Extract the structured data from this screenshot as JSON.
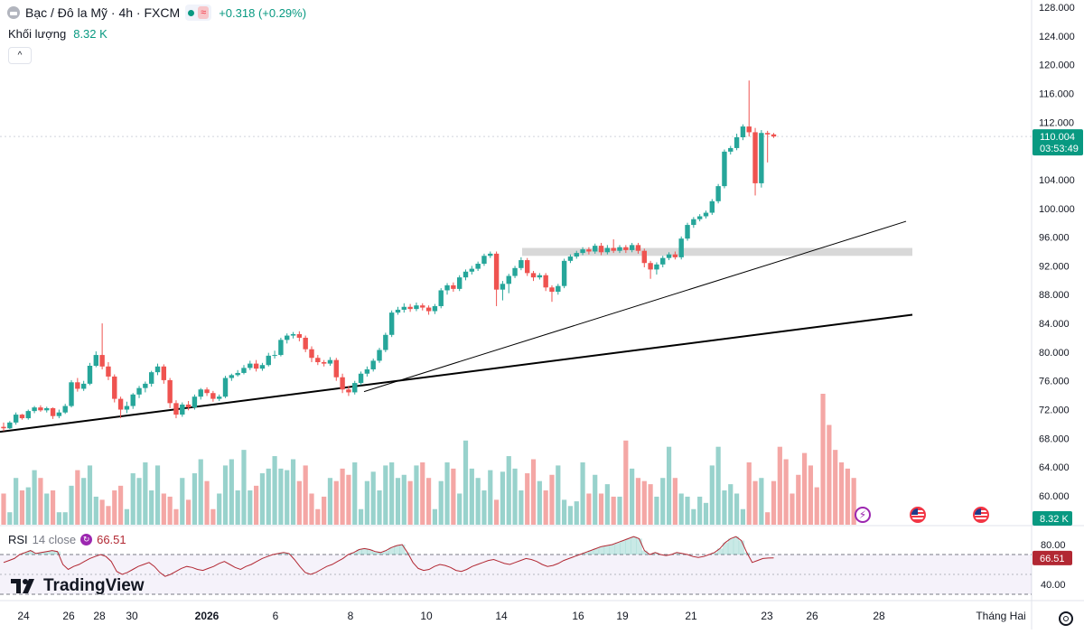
{
  "symbol": {
    "title": "Bạc / Đô la Mỹ · 4h · FXCM",
    "market_badge": "≈",
    "change": "+0.318 (+0.29%)",
    "icon": "silver-coin-icon"
  },
  "volume_legend": {
    "label": "Khối lượng",
    "value": "8.32 K"
  },
  "rsi_legend": {
    "name": "RSI",
    "source": "14 close",
    "value": "66.51"
  },
  "brand": {
    "name": "TradingView",
    "icon": "tradingview-logo-icon"
  },
  "price_axis": {
    "ticks": [
      "128.000",
      "124.000",
      "120.000",
      "116.000",
      "112.000",
      "104.000",
      "100.000",
      "96.000",
      "92.000",
      "88.000",
      "84.000",
      "80.000",
      "76.000",
      "72.000",
      "68.000",
      "64.000",
      "60.000"
    ],
    "last_price": "110.004",
    "countdown": "03:53:49",
    "volume_badge": "8.32 K"
  },
  "rsi_axis": {
    "ticks": [
      "80.00",
      "40.00"
    ],
    "value_badge": "66.51"
  },
  "time_axis": [
    "24",
    "26",
    "28",
    "30",
    "2026",
    "6",
    "8",
    "10",
    "14",
    "16",
    "19",
    "21",
    "23",
    "26",
    "28",
    "Tháng Hai"
  ],
  "colors": {
    "up": "#26a69a",
    "down": "#ef5350",
    "vol_up": "#98d2cc",
    "vol_down": "#f4a7a5",
    "rsi_line": "#b22833",
    "accent": "#089981"
  },
  "chart_data": {
    "type": "candlestick",
    "title": "Bạc / Đô la Mỹ · 4h · FXCM",
    "timeframe": "4h",
    "ylim": [
      58,
      129
    ],
    "yticks": [
      128,
      124,
      120,
      116,
      112,
      104,
      100,
      96,
      92,
      88,
      84,
      80,
      76,
      72,
      68,
      64,
      60
    ],
    "last_price": 110.004,
    "change": 0.318,
    "change_pct": 0.29,
    "candles": [
      [
        69.6,
        69.4,
        70.2,
        69.0
      ],
      [
        69.4,
        70.2,
        70.4,
        69.3
      ],
      [
        70.2,
        71.3,
        71.6,
        69.9
      ],
      [
        71.3,
        70.8,
        71.4,
        70.6
      ],
      [
        70.8,
        71.8,
        72.0,
        70.6
      ],
      [
        71.8,
        72.3,
        72.5,
        71.5
      ],
      [
        72.3,
        71.9,
        72.6,
        71.7
      ],
      [
        71.9,
        72.2,
        72.4,
        71.6
      ],
      [
        72.2,
        71.1,
        72.3,
        70.7
      ],
      [
        71.1,
        71.6,
        72.0,
        70.8
      ],
      [
        71.6,
        72.5,
        72.8,
        71.4
      ],
      [
        72.5,
        75.8,
        76.1,
        72.3
      ],
      [
        75.8,
        74.9,
        76.4,
        74.5
      ],
      [
        74.9,
        75.6,
        76.0,
        74.6
      ],
      [
        75.6,
        78.1,
        78.5,
        75.4
      ],
      [
        78.1,
        79.6,
        80.1,
        77.9
      ],
      [
        79.6,
        78.0,
        84.0,
        77.6
      ],
      [
        78.0,
        76.6,
        78.6,
        76.1
      ],
      [
        76.6,
        73.5,
        76.9,
        73.0
      ],
      [
        73.5,
        72.0,
        73.8,
        70.8
      ],
      [
        72.0,
        72.5,
        73.1,
        71.5
      ],
      [
        72.5,
        74.1,
        74.3,
        72.1
      ],
      [
        74.1,
        75.0,
        75.3,
        73.6
      ],
      [
        75.0,
        75.6,
        75.9,
        74.4
      ],
      [
        75.6,
        77.2,
        77.4,
        75.2
      ],
      [
        77.2,
        78.0,
        78.4,
        76.8
      ],
      [
        78.0,
        76.1,
        78.3,
        75.6
      ],
      [
        76.1,
        72.9,
        76.4,
        72.2
      ],
      [
        72.9,
        71.3,
        73.3,
        70.8
      ],
      [
        71.3,
        72.7,
        73.0,
        71.0
      ],
      [
        72.7,
        72.3,
        73.2,
        71.9
      ],
      [
        72.3,
        73.8,
        74.1,
        72.0
      ],
      [
        73.8,
        74.8,
        75.0,
        73.4
      ],
      [
        74.8,
        74.3,
        75.1,
        73.9
      ],
      [
        74.3,
        73.5,
        74.6,
        73.1
      ],
      [
        73.5,
        73.8,
        74.1,
        73.2
      ],
      [
        73.8,
        76.4,
        76.7,
        73.6
      ],
      [
        76.4,
        76.8,
        77.0,
        76.0
      ],
      [
        76.8,
        77.1,
        77.5,
        76.6
      ],
      [
        77.1,
        77.8,
        78.2,
        76.9
      ],
      [
        77.8,
        78.4,
        78.8,
        77.5
      ],
      [
        78.4,
        77.7,
        78.9,
        77.3
      ],
      [
        77.7,
        78.2,
        78.5,
        77.4
      ],
      [
        78.2,
        79.5,
        79.9,
        78.0
      ],
      [
        79.5,
        79.6,
        80.2,
        79.1
      ],
      [
        79.6,
        81.7,
        82.0,
        79.4
      ],
      [
        81.7,
        82.3,
        82.6,
        81.2
      ],
      [
        82.3,
        82.5,
        82.8,
        81.9
      ],
      [
        82.5,
        82.0,
        82.9,
        81.5
      ],
      [
        82.0,
        80.4,
        82.3,
        80.0
      ],
      [
        80.4,
        79.2,
        80.8,
        78.6
      ],
      [
        79.2,
        78.6,
        79.6,
        78.2
      ],
      [
        78.6,
        78.4,
        78.9,
        78.0
      ],
      [
        78.4,
        78.9,
        79.3,
        78.1
      ],
      [
        78.9,
        76.5,
        79.2,
        76.0
      ],
      [
        76.5,
        74.8,
        77.0,
        74.3
      ],
      [
        74.8,
        74.4,
        75.3,
        73.9
      ],
      [
        74.4,
        75.7,
        76.0,
        74.1
      ],
      [
        75.7,
        77.0,
        77.3,
        75.4
      ],
      [
        77.0,
        77.6,
        78.0,
        76.6
      ],
      [
        77.6,
        78.8,
        79.1,
        77.3
      ],
      [
        78.8,
        80.3,
        80.6,
        78.5
      ],
      [
        80.3,
        82.4,
        82.7,
        80.0
      ],
      [
        82.4,
        85.5,
        85.8,
        82.1
      ],
      [
        85.5,
        85.9,
        86.3,
        85.2
      ],
      [
        85.9,
        86.3,
        86.8,
        85.5
      ],
      [
        86.3,
        86.0,
        86.7,
        85.6
      ],
      [
        86.0,
        86.5,
        86.9,
        85.7
      ],
      [
        86.5,
        86.2,
        86.8,
        85.8
      ],
      [
        86.2,
        85.7,
        86.5,
        85.2
      ],
      [
        85.7,
        86.4,
        86.7,
        85.3
      ],
      [
        86.4,
        88.6,
        88.9,
        86.1
      ],
      [
        88.6,
        89.3,
        89.6,
        88.0
      ],
      [
        89.3,
        88.8,
        89.7,
        88.4
      ],
      [
        88.8,
        90.4,
        90.7,
        88.5
      ],
      [
        90.4,
        91.2,
        91.5,
        90.0
      ],
      [
        91.2,
        91.6,
        92.0,
        90.8
      ],
      [
        91.6,
        92.3,
        92.6,
        91.3
      ],
      [
        92.3,
        93.4,
        93.7,
        92.0
      ],
      [
        93.4,
        93.7,
        94.0,
        93.1
      ],
      [
        93.7,
        88.7,
        94.0,
        86.4
      ],
      [
        88.7,
        89.5,
        89.9,
        87.2
      ],
      [
        89.5,
        90.6,
        90.9,
        88.2
      ],
      [
        90.6,
        91.7,
        92.0,
        90.3
      ],
      [
        91.7,
        92.8,
        93.2,
        91.4
      ],
      [
        92.8,
        91.0,
        93.1,
        90.6
      ],
      [
        91.0,
        90.4,
        91.3,
        89.9
      ],
      [
        90.4,
        90.7,
        91.0,
        90.1
      ],
      [
        90.7,
        89.0,
        91.0,
        88.5
      ],
      [
        89.0,
        88.4,
        89.3,
        87.0
      ],
      [
        88.4,
        89.2,
        89.5,
        88.0
      ],
      [
        89.2,
        92.7,
        93.0,
        88.9
      ],
      [
        92.7,
        93.3,
        93.6,
        92.4
      ],
      [
        93.3,
        93.8,
        94.1,
        93.0
      ],
      [
        93.8,
        94.3,
        94.6,
        93.5
      ],
      [
        94.3,
        94.0,
        94.6,
        93.6
      ],
      [
        94.0,
        94.8,
        95.1,
        93.7
      ],
      [
        94.8,
        93.9,
        95.2,
        93.5
      ],
      [
        93.9,
        94.5,
        94.9,
        93.6
      ],
      [
        94.5,
        94.1,
        95.7,
        93.8
      ],
      [
        94.1,
        94.6,
        94.9,
        93.8
      ],
      [
        94.6,
        94.2,
        94.9,
        93.8
      ],
      [
        94.2,
        94.9,
        95.2,
        93.9
      ],
      [
        94.9,
        94.1,
        95.2,
        93.7
      ],
      [
        94.1,
        92.4,
        94.4,
        91.8
      ],
      [
        92.4,
        91.5,
        92.7,
        90.2
      ],
      [
        91.5,
        92.2,
        92.5,
        90.8
      ],
      [
        92.2,
        93.1,
        93.4,
        91.8
      ],
      [
        93.1,
        93.6,
        93.9,
        92.8
      ],
      [
        93.6,
        93.2,
        94.0,
        92.9
      ],
      [
        93.2,
        95.8,
        96.1,
        92.9
      ],
      [
        95.8,
        97.7,
        98.0,
        95.5
      ],
      [
        97.7,
        98.5,
        98.8,
        97.3
      ],
      [
        98.5,
        98.9,
        99.2,
        98.2
      ],
      [
        98.9,
        99.4,
        99.7,
        98.6
      ],
      [
        99.4,
        101.0,
        101.3,
        99.1
      ],
      [
        101.0,
        103.1,
        103.4,
        100.7
      ],
      [
        103.1,
        107.9,
        108.2,
        102.8
      ],
      [
        107.9,
        108.4,
        108.7,
        107.5
      ],
      [
        108.4,
        109.9,
        110.4,
        108.1
      ],
      [
        109.9,
        111.4,
        111.7,
        109.5
      ],
      [
        111.4,
        110.6,
        117.8,
        110.0
      ],
      [
        110.6,
        103.5,
        111.2,
        101.8
      ],
      [
        103.5,
        110.5,
        110.9,
        102.9
      ],
      [
        110.5,
        110.3,
        110.8,
        106.4
      ],
      [
        110.3,
        110.004,
        110.5,
        109.8
      ]
    ],
    "volume": [
      20,
      8,
      30,
      22,
      24,
      35,
      30,
      20,
      22,
      8,
      8,
      25,
      35,
      30,
      38,
      18,
      16,
      12,
      22,
      25,
      10,
      33,
      30,
      40,
      22,
      38,
      20,
      18,
      10,
      30,
      16,
      33,
      42,
      28,
      10,
      20,
      38,
      42,
      22,
      48,
      22,
      25,
      33,
      36,
      44,
      36,
      35,
      42,
      28,
      38,
      20,
      10,
      18,
      30,
      28,
      36,
      32,
      40,
      10,
      28,
      34,
      22,
      38,
      40,
      30,
      32,
      28,
      38,
      40,
      30,
      10,
      28,
      40,
      36,
      20,
      54,
      36,
      30,
      22,
      35,
      16,
      34,
      44,
      36,
      22,
      33,
      42,
      28,
      22,
      32,
      38,
      16,
      12,
      15,
      40,
      20,
      32,
      20,
      26,
      18,
      18,
      54,
      36,
      30,
      28,
      26,
      18,
      30,
      50,
      30,
      20,
      18,
      10,
      18,
      14,
      38,
      50,
      22,
      26,
      20,
      10,
      40,
      28,
      30,
      8,
      28,
      50,
      42,
      20,
      32,
      46,
      38,
      24,
      84,
      64,
      48,
      40,
      36,
      30
    ],
    "volume_colors": "up/down follows candle direction",
    "volume_last": "8.32 K",
    "rsi": {
      "name": "RSI",
      "period": 14,
      "source": "close",
      "last": 66.51,
      "bands": [
        70,
        30
      ],
      "axis_ticks": [
        80,
        40
      ],
      "values": [
        62,
        64,
        66,
        70,
        72,
        74,
        71,
        72,
        73,
        74,
        73,
        60,
        55,
        58,
        60,
        63,
        66,
        68,
        70,
        68,
        63,
        53,
        50,
        52,
        55,
        58,
        60,
        62,
        58,
        52,
        48,
        50,
        53,
        56,
        58,
        57,
        55,
        54,
        56,
        58,
        61,
        63,
        60,
        57,
        55,
        58,
        60,
        63,
        66,
        68,
        70,
        71,
        72,
        71,
        65,
        58,
        52,
        50,
        52,
        55,
        58,
        60,
        63,
        66,
        70,
        72,
        75,
        76,
        75,
        73,
        72,
        74,
        77,
        79,
        80,
        72,
        62,
        56,
        54,
        55,
        58,
        60,
        59,
        57,
        54,
        53,
        55,
        58,
        60,
        62,
        64,
        65,
        63,
        61,
        60,
        62,
        64,
        66,
        65,
        63,
        60,
        58,
        59,
        61,
        64,
        66,
        68,
        70,
        72,
        74,
        76,
        78,
        79,
        80,
        82,
        84,
        86,
        88,
        86,
        74,
        70,
        72,
        70,
        69,
        70,
        72,
        71,
        70,
        68,
        67,
        68,
        70,
        72,
        76,
        82,
        86,
        88,
        84,
        72,
        62,
        64,
        66,
        66.5,
        66.51
      ]
    },
    "trendlines": [
      {
        "from": [
          "24",
          68.9
        ],
        "to": [
          "28 (projected)",
          85.2
        ],
        "style": "thick"
      },
      {
        "from": [
          "8",
          74.5
        ],
        "to": [
          "28 (projected)",
          98.2
        ],
        "style": "thin"
      }
    ],
    "resistance_zone": {
      "from": 94.5,
      "to": 93.4
    },
    "x_ticks": [
      "24",
      "26",
      "28",
      "30",
      "2026",
      "6",
      "8",
      "10",
      "14",
      "16",
      "19",
      "21",
      "23",
      "26",
      "28",
      "Tháng Hai"
    ]
  }
}
